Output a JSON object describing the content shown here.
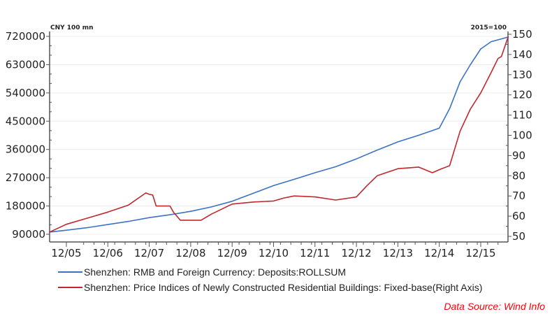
{
  "chart_data": {
    "type": "line",
    "left_axis": {
      "unit_label": "CNY 100 mn",
      "ylim": [
        80000,
        740000
      ],
      "ticks": [
        90000,
        180000,
        270000,
        360000,
        450000,
        540000,
        630000,
        720000
      ]
    },
    "right_axis": {
      "unit_label": "2015=100",
      "ylim": [
        48,
        152
      ],
      "ticks": [
        50,
        60,
        70,
        80,
        90,
        100,
        110,
        120,
        130,
        140,
        150
      ]
    },
    "x_ticks": [
      "12/05",
      "12/06",
      "12/07",
      "12/08",
      "12/09",
      "12/10",
      "12/11",
      "12/12",
      "12/13",
      "12/14",
      "12/15"
    ],
    "xlim": [
      "2005-07",
      "2016-08"
    ],
    "grid": true,
    "legend_placement": "bottom",
    "series": [
      {
        "name": "Shenzhen: RMB and Foreign Currency: Deposits:ROLLSUM",
        "axis": "left",
        "color": "#3a72c4",
        "x": [
          "2005-07",
          "2005-12",
          "2006-06",
          "2006-12",
          "2007-06",
          "2007-12",
          "2008-06",
          "2008-12",
          "2009-06",
          "2009-12",
          "2010-06",
          "2010-12",
          "2011-06",
          "2011-12",
          "2012-06",
          "2012-12",
          "2013-06",
          "2013-12",
          "2014-06",
          "2014-12",
          "2015-03",
          "2015-06",
          "2015-09",
          "2015-12",
          "2016-03",
          "2016-06",
          "2016-08"
        ],
        "y": [
          97000,
          103000,
          111000,
          121000,
          131000,
          143000,
          152000,
          163000,
          177000,
          195000,
          220000,
          245000,
          265000,
          286000,
          305000,
          330000,
          358000,
          384000,
          405000,
          428000,
          490000,
          575000,
          630000,
          680000,
          703000,
          712000,
          718000
        ]
      },
      {
        "name": "Shenzhen: Price Indices of Newly Constructed Residential Buildings: Fixed-base(Right Axis)",
        "axis": "right",
        "color": "#c0282d",
        "x": [
          "2005-07",
          "2005-12",
          "2006-06",
          "2006-12",
          "2007-06",
          "2007-11",
          "2007-12",
          "2008-01",
          "2008-02",
          "2008-06",
          "2008-07",
          "2008-09",
          "2008-12",
          "2009-03",
          "2009-06",
          "2009-12",
          "2010-06",
          "2010-12",
          "2011-03",
          "2011-06",
          "2011-12",
          "2012-06",
          "2012-12",
          "2013-03",
          "2013-06",
          "2013-12",
          "2014-06",
          "2014-10",
          "2014-12",
          "2015-03",
          "2015-06",
          "2015-09",
          "2015-12",
          "2016-03",
          "2016-05",
          "2016-06",
          "2016-08"
        ],
        "y": [
          52,
          56,
          59,
          62,
          65.5,
          71.5,
          70.8,
          70.5,
          65,
          65,
          62,
          58,
          58,
          58,
          61,
          66,
          67,
          67.5,
          69,
          70,
          69.5,
          68,
          69.5,
          75,
          80,
          83.5,
          84.3,
          81.5,
          83,
          85,
          102,
          113,
          121,
          131,
          138,
          139,
          149
        ]
      }
    ],
    "source": "Data Source: Wind Info"
  }
}
